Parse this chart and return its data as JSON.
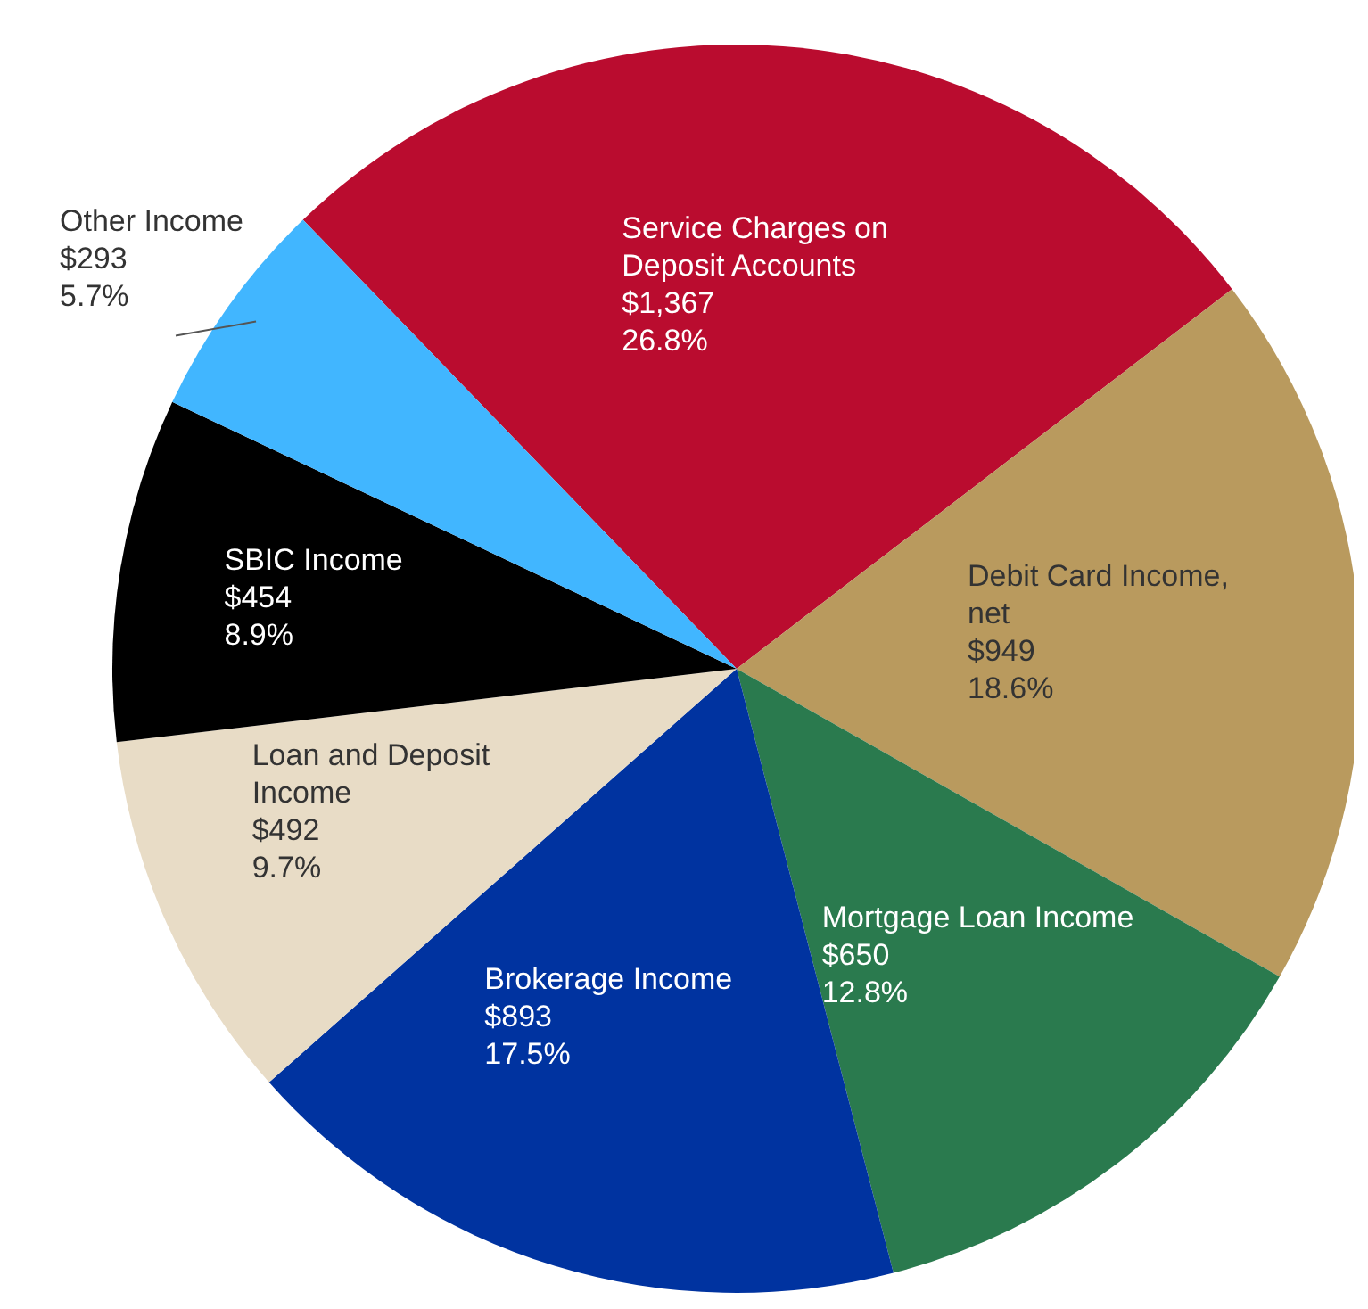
{
  "chart_data": {
    "type": "pie",
    "categories": [
      "Service Charges on Deposit Accounts",
      "Debit Card Income, net",
      "Mortgage Loan Income",
      "Brokerage Income",
      "Loan and Deposit Income",
      "SBIC Income",
      "Other Income"
    ],
    "values": [
      1367,
      949,
      650,
      893,
      492,
      454,
      293
    ],
    "value_labels": [
      "$1,367\n26.8%",
      "$949\n18.6%",
      "$650\n12.8%",
      "$893\n17.5%",
      "$492\n9.7%",
      "$454\n8.9%",
      "$293\n5.7%"
    ],
    "colors": [
      "#ba0c2f",
      "#b99a5e",
      "#2a7a4e",
      "#0033a0",
      "#e8dcc6",
      "#000000",
      "#41b6ff"
    ],
    "legend": false
  }
}
